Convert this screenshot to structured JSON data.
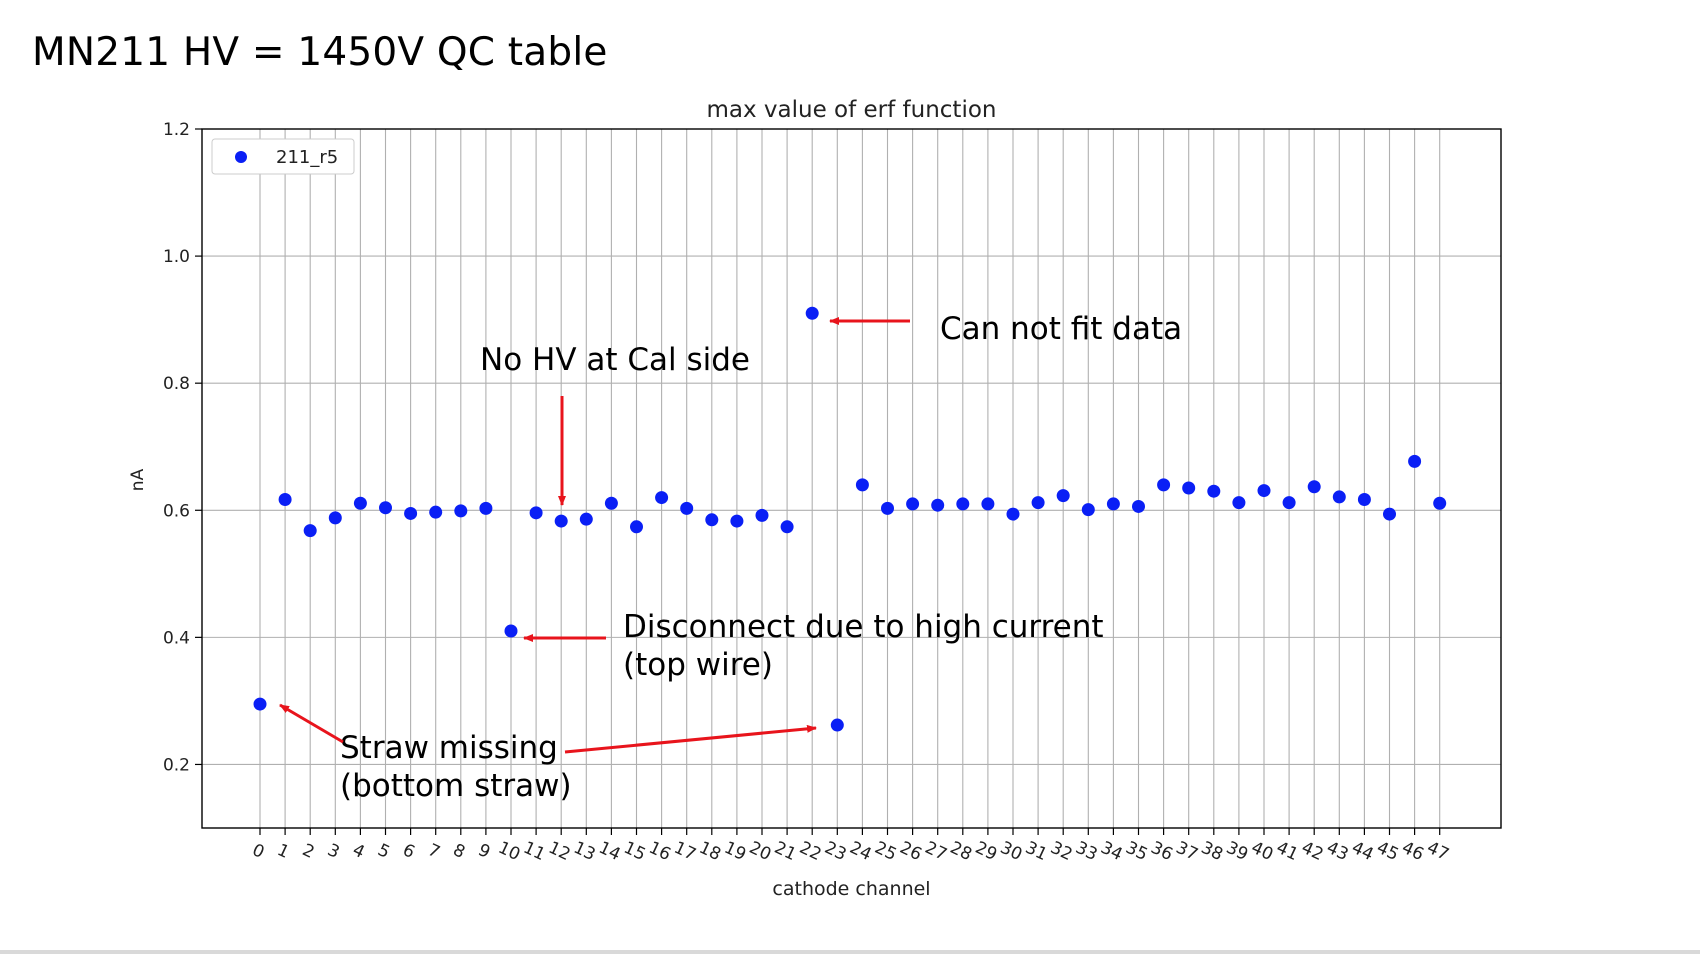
{
  "slide": {
    "title": "MN211 HV = 1450V QC table"
  },
  "chart_data": {
    "type": "scatter",
    "title": "max value of erf function",
    "xlabel": "cathode channel",
    "ylabel": "nA",
    "ylim": [
      0.1,
      1.2
    ],
    "yticks": [
      0.2,
      0.4,
      0.6,
      0.8,
      1.0,
      1.2
    ],
    "ytick_labels": [
      "0.2",
      "0.4",
      "0.6",
      "0.8",
      "1.0",
      "1.2"
    ],
    "grid": true,
    "legend_position": "top-left",
    "series": [
      {
        "name": "211_r5",
        "color": "#0a1ff5",
        "x": [
          0,
          1,
          2,
          3,
          4,
          5,
          6,
          7,
          8,
          9,
          10,
          11,
          12,
          13,
          14,
          15,
          16,
          17,
          18,
          19,
          20,
          21,
          22,
          23,
          24,
          25,
          26,
          27,
          28,
          29,
          30,
          31,
          32,
          33,
          34,
          35,
          36,
          37,
          38,
          39,
          40,
          41,
          42,
          43,
          44,
          45,
          46,
          47
        ],
        "y": [
          0.295,
          0.617,
          0.568,
          0.588,
          0.611,
          0.604,
          0.595,
          0.597,
          0.599,
          0.603,
          0.41,
          0.596,
          0.583,
          0.586,
          0.611,
          0.574,
          0.62,
          0.603,
          0.585,
          0.583,
          0.592,
          0.574,
          0.91,
          0.262,
          0.64,
          0.603,
          0.61,
          0.608,
          0.61,
          0.61,
          0.594,
          0.612,
          0.623,
          0.601,
          0.61,
          0.606,
          0.64,
          0.635,
          0.63,
          0.612,
          0.631,
          0.612,
          0.637,
          0.621,
          0.617,
          0.594,
          0.677,
          0.611
        ]
      }
    ],
    "annotations": [
      {
        "name": "can-not-fit",
        "lines": [
          "Can not fit data"
        ],
        "points_to_x": [
          22
        ]
      },
      {
        "name": "no-hv",
        "lines": [
          "No HV at Cal side"
        ],
        "points_to_x": [
          12
        ]
      },
      {
        "name": "disconnect",
        "lines": [
          "Disconnect due to high current",
          "(top wire)"
        ],
        "points_to_x": [
          10
        ]
      },
      {
        "name": "straw-missing",
        "lines": [
          "Straw missing",
          "(bottom straw)"
        ],
        "points_to_x": [
          0,
          23
        ]
      }
    ],
    "annotation_color": "#e8141c"
  }
}
